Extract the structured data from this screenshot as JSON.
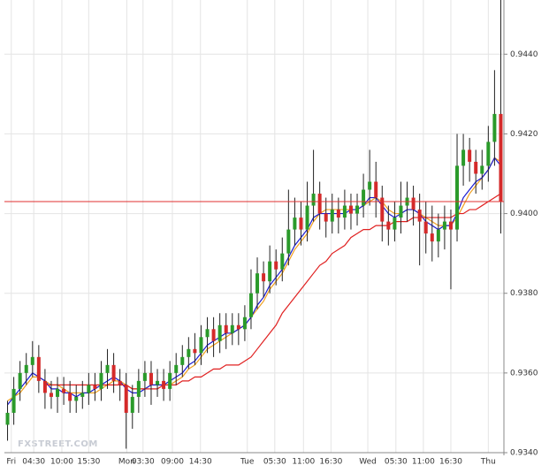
{
  "chart_data": {
    "type": "candlestick",
    "watermark": "FXSTREET.COM",
    "xlim": [
      -0.5,
      79.5
    ],
    "ylim": [
      0.934,
      0.94536
    ],
    "xticks": [
      {
        "value": 0.6,
        "label": "Fri"
      },
      {
        "value": 4.2,
        "label": "04:30"
      },
      {
        "value": 8.7,
        "label": "10:00"
      },
      {
        "value": 13.0,
        "label": "15:30"
      },
      {
        "value": 19.1,
        "label": "Mon"
      },
      {
        "value": 21.7,
        "label": "03:30"
      },
      {
        "value": 26.4,
        "label": "09:00"
      },
      {
        "value": 30.9,
        "label": "14:30"
      },
      {
        "value": 38.4,
        "label": "Tue"
      },
      {
        "value": 42.8,
        "label": "05:30"
      },
      {
        "value": 47.4,
        "label": "11:00"
      },
      {
        "value": 51.8,
        "label": "16:30"
      },
      {
        "value": 57.7,
        "label": "Wed"
      },
      {
        "value": 62.2,
        "label": "05:30"
      },
      {
        "value": 66.6,
        "label": "11:00"
      },
      {
        "value": 71.0,
        "label": "16:30"
      },
      {
        "value": 77.0,
        "label": "Thu"
      }
    ],
    "yticks": [
      {
        "value": 0.934,
        "label": "0.9340"
      },
      {
        "value": 0.936,
        "label": "0.9360"
      },
      {
        "value": 0.938,
        "label": "0.9380"
      },
      {
        "value": 0.94,
        "label": "0.9400"
      },
      {
        "value": 0.942,
        "label": "0.9420"
      },
      {
        "value": 0.944,
        "label": "0.9440"
      }
    ],
    "grid": true,
    "up_color": "#2a9a2a",
    "down_color": "#d42a2a",
    "wick_color": "#222222",
    "price_line": {
      "value": 0.9403,
      "color": "#e03030"
    },
    "open": [
      0.9347,
      0.935,
      0.9356,
      0.936,
      0.9362,
      0.9364,
      0.9358,
      0.9355,
      0.9354,
      0.9356,
      0.9355,
      0.9353,
      0.9354,
      0.9355,
      0.9357,
      0.9356,
      0.936,
      0.9362,
      0.9358,
      0.9357,
      0.935,
      0.9354,
      0.9358,
      0.936,
      0.9357,
      0.9358,
      0.9356,
      0.936,
      0.9362,
      0.9364,
      0.9366,
      0.9365,
      0.9369,
      0.9371,
      0.9368,
      0.9372,
      0.937,
      0.9372,
      0.9371,
      0.9374,
      0.938,
      0.9385,
      0.9383,
      0.9388,
      0.9386,
      0.939,
      0.9396,
      0.9399,
      0.9396,
      0.9402,
      0.9405,
      0.94,
      0.9398,
      0.9401,
      0.9399,
      0.9402,
      0.94,
      0.9402,
      0.9406,
      0.9408,
      0.9404,
      0.9398,
      0.9396,
      0.9399,
      0.9402,
      0.9404,
      0.9401,
      0.9398,
      0.9395,
      0.9393,
      0.9396,
      0.9398,
      0.9396,
      0.9412,
      0.9416,
      0.9413,
      0.941,
      0.9412,
      0.9418,
      0.9425
    ],
    "high": [
      0.9353,
      0.9359,
      0.9363,
      0.9365,
      0.9368,
      0.9367,
      0.9361,
      0.9358,
      0.9359,
      0.9359,
      0.9358,
      0.9357,
      0.9358,
      0.936,
      0.936,
      0.9363,
      0.9366,
      0.9365,
      0.9361,
      0.936,
      0.9357,
      0.9361,
      0.9363,
      0.9363,
      0.9361,
      0.9361,
      0.9363,
      0.9365,
      0.9367,
      0.9369,
      0.937,
      0.9372,
      0.9374,
      0.9374,
      0.9375,
      0.9375,
      0.9375,
      0.9375,
      0.9377,
      0.9386,
      0.9389,
      0.9388,
      0.9392,
      0.9391,
      0.9394,
      0.9406,
      0.9404,
      0.9403,
      0.9408,
      0.9416,
      0.9408,
      0.9404,
      0.9405,
      0.9404,
      0.9406,
      0.9405,
      0.9405,
      0.941,
      0.9416,
      0.9413,
      0.9407,
      0.9402,
      0.9403,
      0.9408,
      0.9408,
      0.9407,
      0.9405,
      0.9403,
      0.9402,
      0.94,
      0.9402,
      0.9401,
      0.942,
      0.942,
      0.9419,
      0.9416,
      0.9416,
      0.9422,
      0.9436,
      0.9454
    ],
    "low": [
      0.9343,
      0.9347,
      0.9353,
      0.9357,
      0.9359,
      0.9355,
      0.9351,
      0.9351,
      0.935,
      0.9352,
      0.935,
      0.935,
      0.9351,
      0.9352,
      0.9353,
      0.9353,
      0.9356,
      0.9355,
      0.9353,
      0.9341,
      0.9346,
      0.935,
      0.9354,
      0.9352,
      0.9354,
      0.9353,
      0.9353,
      0.9357,
      0.9359,
      0.9361,
      0.9362,
      0.9362,
      0.9365,
      0.9364,
      0.9365,
      0.9366,
      0.9367,
      0.9367,
      0.9368,
      0.9371,
      0.9376,
      0.9379,
      0.938,
      0.9382,
      0.9383,
      0.9387,
      0.9392,
      0.9392,
      0.9393,
      0.9398,
      0.9396,
      0.9394,
      0.9395,
      0.9395,
      0.9396,
      0.9396,
      0.9397,
      0.9399,
      0.9402,
      0.9399,
      0.9393,
      0.9392,
      0.9393,
      0.9395,
      0.9398,
      0.9397,
      0.9387,
      0.939,
      0.9388,
      0.9389,
      0.9391,
      0.9381,
      0.9393,
      0.9407,
      0.9408,
      0.9405,
      0.9406,
      0.9408,
      0.9412,
      0.9395
    ],
    "close": [
      0.935,
      0.9356,
      0.936,
      0.9362,
      0.9364,
      0.9358,
      0.9355,
      0.9354,
      0.9356,
      0.9355,
      0.9353,
      0.9354,
      0.9355,
      0.9357,
      0.9356,
      0.936,
      0.9362,
      0.9358,
      0.9357,
      0.935,
      0.9354,
      0.9358,
      0.936,
      0.9357,
      0.9358,
      0.9356,
      0.936,
      0.9362,
      0.9364,
      0.9366,
      0.9365,
      0.9369,
      0.9371,
      0.9368,
      0.9372,
      0.937,
      0.9372,
      0.9371,
      0.9374,
      0.938,
      0.9385,
      0.9383,
      0.9388,
      0.9386,
      0.939,
      0.9396,
      0.9399,
      0.9396,
      0.9402,
      0.9405,
      0.94,
      0.9398,
      0.9401,
      0.9399,
      0.9402,
      0.94,
      0.9402,
      0.9406,
      0.9408,
      0.9404,
      0.9398,
      0.9396,
      0.9399,
      0.9402,
      0.9404,
      0.9401,
      0.9398,
      0.9395,
      0.9393,
      0.9396,
      0.9398,
      0.9396,
      0.9412,
      0.9416,
      0.9413,
      0.941,
      0.9412,
      0.9418,
      0.9425,
      0.9403
    ],
    "series": [
      {
        "color": "#f0a020",
        "values": [
          0.9353,
          0.9354,
          0.9355,
          0.9357,
          0.9359,
          0.9359,
          0.9358,
          0.9357,
          0.9357,
          0.9356,
          0.9355,
          0.9355,
          0.9355,
          0.9355,
          0.9355,
          0.9356,
          0.9357,
          0.9358,
          0.9358,
          0.9357,
          0.9356,
          0.9356,
          0.9356,
          0.9357,
          0.9357,
          0.9357,
          0.9357,
          0.9358,
          0.9359,
          0.9361,
          0.9362,
          0.9364,
          0.9366,
          0.9367,
          0.9368,
          0.9369,
          0.937,
          0.9371,
          0.9372,
          0.9374,
          0.9376,
          0.9378,
          0.9381,
          0.9383,
          0.9385,
          0.9388,
          0.9391,
          0.9393,
          0.9395,
          0.9398,
          0.94,
          0.9401,
          0.9401,
          0.9401,
          0.9401,
          0.9401,
          0.9401,
          0.9402,
          0.9403,
          0.9404,
          0.9403,
          0.9401,
          0.94,
          0.94,
          0.9401,
          0.9401,
          0.94,
          0.9399,
          0.9398,
          0.9397,
          0.9397,
          0.9397,
          0.9399,
          0.9402,
          0.9405,
          0.9407,
          0.9409,
          0.9411,
          0.9414,
          0.9413
        ]
      },
      {
        "color": "#1a1ad0",
        "values": [
          0.9352,
          0.9354,
          0.9356,
          0.9358,
          0.936,
          0.9359,
          0.9358,
          0.9356,
          0.9356,
          0.9355,
          0.9355,
          0.9354,
          0.9355,
          0.9355,
          0.9356,
          0.9357,
          0.9358,
          0.9359,
          0.9358,
          0.9356,
          0.9355,
          0.9355,
          0.9356,
          0.9357,
          0.9357,
          0.9357,
          0.9358,
          0.9359,
          0.936,
          0.9362,
          0.9363,
          0.9365,
          0.9367,
          0.9368,
          0.9369,
          0.937,
          0.937,
          0.9371,
          0.9372,
          0.9374,
          0.9377,
          0.9379,
          0.9382,
          0.9384,
          0.9386,
          0.9389,
          0.9392,
          0.9394,
          0.9396,
          0.9399,
          0.94,
          0.94,
          0.94,
          0.94,
          0.94,
          0.9401,
          0.9401,
          0.9402,
          0.9404,
          0.9404,
          0.9402,
          0.94,
          0.9399,
          0.94,
          0.9401,
          0.9401,
          0.94,
          0.9398,
          0.9397,
          0.9396,
          0.9397,
          0.9397,
          0.94,
          0.9404,
          0.9406,
          0.9408,
          0.9409,
          0.9411,
          0.9414,
          0.9412
        ]
      },
      {
        "color": "#e02020",
        "values": [
          null,
          null,
          null,
          null,
          null,
          null,
          0.9357,
          0.9357,
          0.9357,
          0.9357,
          0.9357,
          0.9357,
          0.9357,
          0.9357,
          0.9357,
          0.9357,
          0.9357,
          0.9357,
          0.9357,
          0.9357,
          0.9356,
          0.9356,
          0.9356,
          0.9356,
          0.9356,
          0.9357,
          0.9357,
          0.9357,
          0.9358,
          0.9358,
          0.9359,
          0.9359,
          0.936,
          0.9361,
          0.9361,
          0.9362,
          0.9362,
          0.9362,
          0.9363,
          0.9364,
          0.9366,
          0.9368,
          0.937,
          0.9372,
          0.9375,
          0.9377,
          0.9379,
          0.9381,
          0.9383,
          0.9385,
          0.9387,
          0.9388,
          0.939,
          0.9391,
          0.9392,
          0.9394,
          0.9395,
          0.9396,
          0.9396,
          0.9397,
          0.9397,
          0.9397,
          0.9398,
          0.9398,
          0.9398,
          0.9399,
          0.9399,
          0.9399,
          0.9399,
          0.9399,
          0.9399,
          0.9399,
          0.94,
          0.94,
          0.9401,
          0.9401,
          0.9402,
          0.9403,
          0.9404,
          0.9405
        ]
      }
    ]
  }
}
